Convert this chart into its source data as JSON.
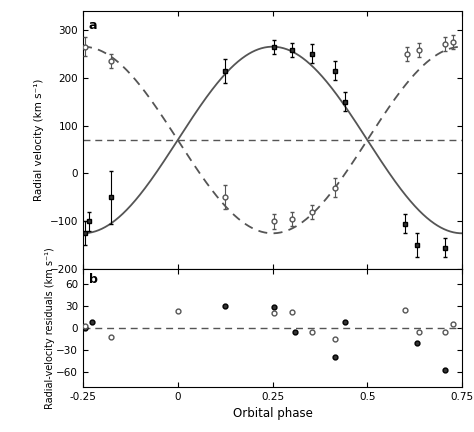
{
  "title_a": "a",
  "title_b": "b",
  "xlabel": "Orbital phase",
  "ylabel_a": "Radial velocity (km s⁻¹)",
  "ylabel_b": "Radial-velocity residuals (km s⁻¹)",
  "xlim": [
    -0.25,
    0.75
  ],
  "ylim_a": [
    -200,
    340
  ],
  "ylim_b": [
    -80,
    80
  ],
  "yticks_a": [
    -200,
    -100,
    0,
    100,
    200,
    300
  ],
  "yticks_b": [
    -60,
    -30,
    0,
    30,
    60
  ],
  "xticks": [
    -0.25,
    0.0,
    0.25,
    0.5,
    0.75
  ],
  "gamma": 70,
  "K1": 195,
  "K2": 195,
  "solid_data": {
    "phase": [
      -0.245,
      -0.235,
      -0.175,
      0.125,
      0.255,
      0.3,
      0.355,
      0.415,
      0.44,
      0.6,
      0.63,
      0.705
    ],
    "rv": [
      -125,
      -100,
      -50,
      215,
      265,
      258,
      250,
      215,
      150,
      -105,
      -150,
      -155
    ],
    "err": [
      25,
      20,
      55,
      25,
      15,
      15,
      20,
      20,
      20,
      20,
      25,
      20
    ]
  },
  "dashed_data": {
    "phase": [
      -0.245,
      -0.175,
      0.125,
      0.255,
      0.3,
      0.355,
      0.415,
      0.605,
      0.635,
      0.705,
      0.725
    ],
    "rv": [
      265,
      235,
      -50,
      -100,
      -95,
      -80,
      -30,
      250,
      258,
      270,
      275
    ],
    "err": [
      20,
      15,
      25,
      15,
      15,
      15,
      20,
      15,
      15,
      15,
      15
    ]
  },
  "resid_filled": {
    "phase": [
      -0.245,
      -0.225,
      0.125,
      0.255,
      0.31,
      0.415,
      0.44,
      0.63,
      0.705
    ],
    "rv": [
      0,
      8,
      30,
      28,
      -5,
      -40,
      8,
      -20,
      -57
    ]
  },
  "resid_open": {
    "phase": [
      -0.245,
      -0.175,
      0.0,
      0.255,
      0.3,
      0.355,
      0.415,
      0.6,
      0.635,
      0.705,
      0.725
    ],
    "rv": [
      2,
      -13,
      23,
      20,
      22,
      -5,
      -15,
      25,
      -5,
      -5,
      5
    ]
  },
  "background_color": "#ffffff",
  "line_color": "#555555"
}
